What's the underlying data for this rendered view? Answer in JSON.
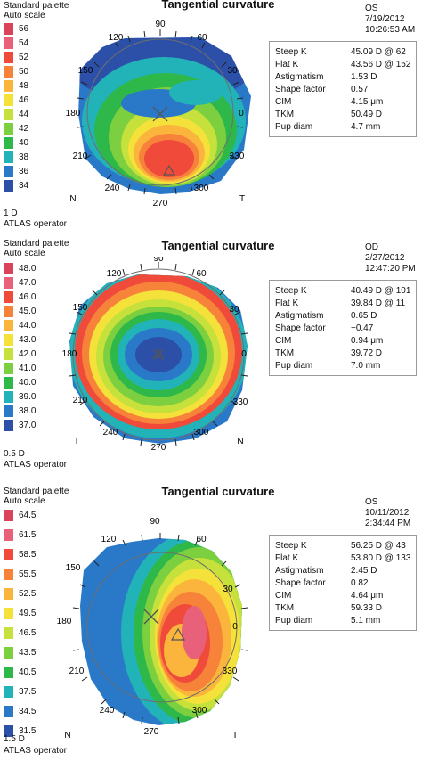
{
  "maps": [
    {
      "title": "Tangential curvature",
      "palette": "Standard palette",
      "scale": "Auto scale",
      "legend": [
        "56",
        "54",
        "52",
        "50",
        "48",
        "46",
        "44",
        "42",
        "40",
        "38",
        "36",
        "34"
      ],
      "step": "1 D",
      "operator": "ATLAS operator",
      "eye": "OS",
      "date": "7/19/2012",
      "time": "10:26:53 AM",
      "angles": [
        "90",
        "60",
        "30",
        "0",
        "330",
        "300",
        "270",
        "240",
        "210",
        "180",
        "150",
        "120"
      ],
      "left_dir": "N",
      "right_dir": "T",
      "stats": [
        {
          "k": "Steep K",
          "v": "45.09 D @ 62"
        },
        {
          "k": "Flat K",
          "v": "43.56 D @ 152"
        },
        {
          "k": "Astigmatism",
          "v": "1.53 D"
        },
        {
          "k": "Shape factor",
          "v": "0.57"
        },
        {
          "k": "CIM",
          "v": "4.15 μm"
        },
        {
          "k": "TKM",
          "v": "50.49 D"
        },
        {
          "k": "Pup diam",
          "v": "4.7 mm"
        }
      ]
    },
    {
      "title": "Tangential curvature",
      "palette": "Standard palette",
      "scale": "Auto scale",
      "legend": [
        "48.0",
        "47.0",
        "46.0",
        "45.0",
        "44.0",
        "43.0",
        "42.0",
        "41.0",
        "40.0",
        "39.0",
        "38.0",
        "37.0"
      ],
      "step": "0.5 D",
      "operator": "ATLAS operator",
      "eye": "OD",
      "date": "2/27/2012",
      "time": "12:47:20 PM",
      "angles": [
        "90",
        "60",
        "30",
        "0",
        "330",
        "300",
        "270",
        "240",
        "210",
        "180",
        "150",
        "120"
      ],
      "left_dir": "T",
      "right_dir": "N",
      "stats": [
        {
          "k": "Steep K",
          "v": "40.49 D @ 101"
        },
        {
          "k": "Flat K",
          "v": "39.84 D @ 11"
        },
        {
          "k": "Astigmatism",
          "v": "0.65 D"
        },
        {
          "k": "Shape factor",
          "v": "−0.47"
        },
        {
          "k": "CIM",
          "v": "0.94 μm"
        },
        {
          "k": "TKM",
          "v": "39.72 D"
        },
        {
          "k": "Pup diam",
          "v": "7.0 mm"
        }
      ]
    },
    {
      "title": "Tangential curvature",
      "palette": "Standard palette",
      "scale": "Auto scale",
      "legend": [
        "64.5",
        "61.5",
        "58.5",
        "55.5",
        "52.5",
        "49.5",
        "46.5",
        "43.5",
        "40.5",
        "37.5",
        "34.5",
        "31.5"
      ],
      "step": "1.5 D",
      "operator": "ATLAS operator",
      "eye": "OS",
      "date": "10/11/2012",
      "time": "2:34:44 PM",
      "angles": [
        "90",
        "60",
        "30",
        "0",
        "330",
        "300",
        "270",
        "240",
        "210",
        "180",
        "150",
        "120"
      ],
      "left_dir": "N",
      "right_dir": "T",
      "stats": [
        {
          "k": "Steep K",
          "v": "56.25 D @ 43"
        },
        {
          "k": "Flat K",
          "v": "53.80 D @ 133"
        },
        {
          "k": "Astigmatism",
          "v": "2.45 D"
        },
        {
          "k": "Shape factor",
          "v": "0.82"
        },
        {
          "k": "CIM",
          "v": "4.64 μm"
        },
        {
          "k": "TKM",
          "v": "59.33 D"
        },
        {
          "k": "Pup diam",
          "v": "5.1 mm"
        }
      ]
    }
  ],
  "colors": [
    "#d9445a",
    "#e8607a",
    "#f04a3a",
    "#f7823a",
    "#fbb43c",
    "#f4e23a",
    "#c6e03c",
    "#7ccf3e",
    "#2fb84a",
    "#22b3b8",
    "#2a79c8",
    "#2c4fa8"
  ]
}
